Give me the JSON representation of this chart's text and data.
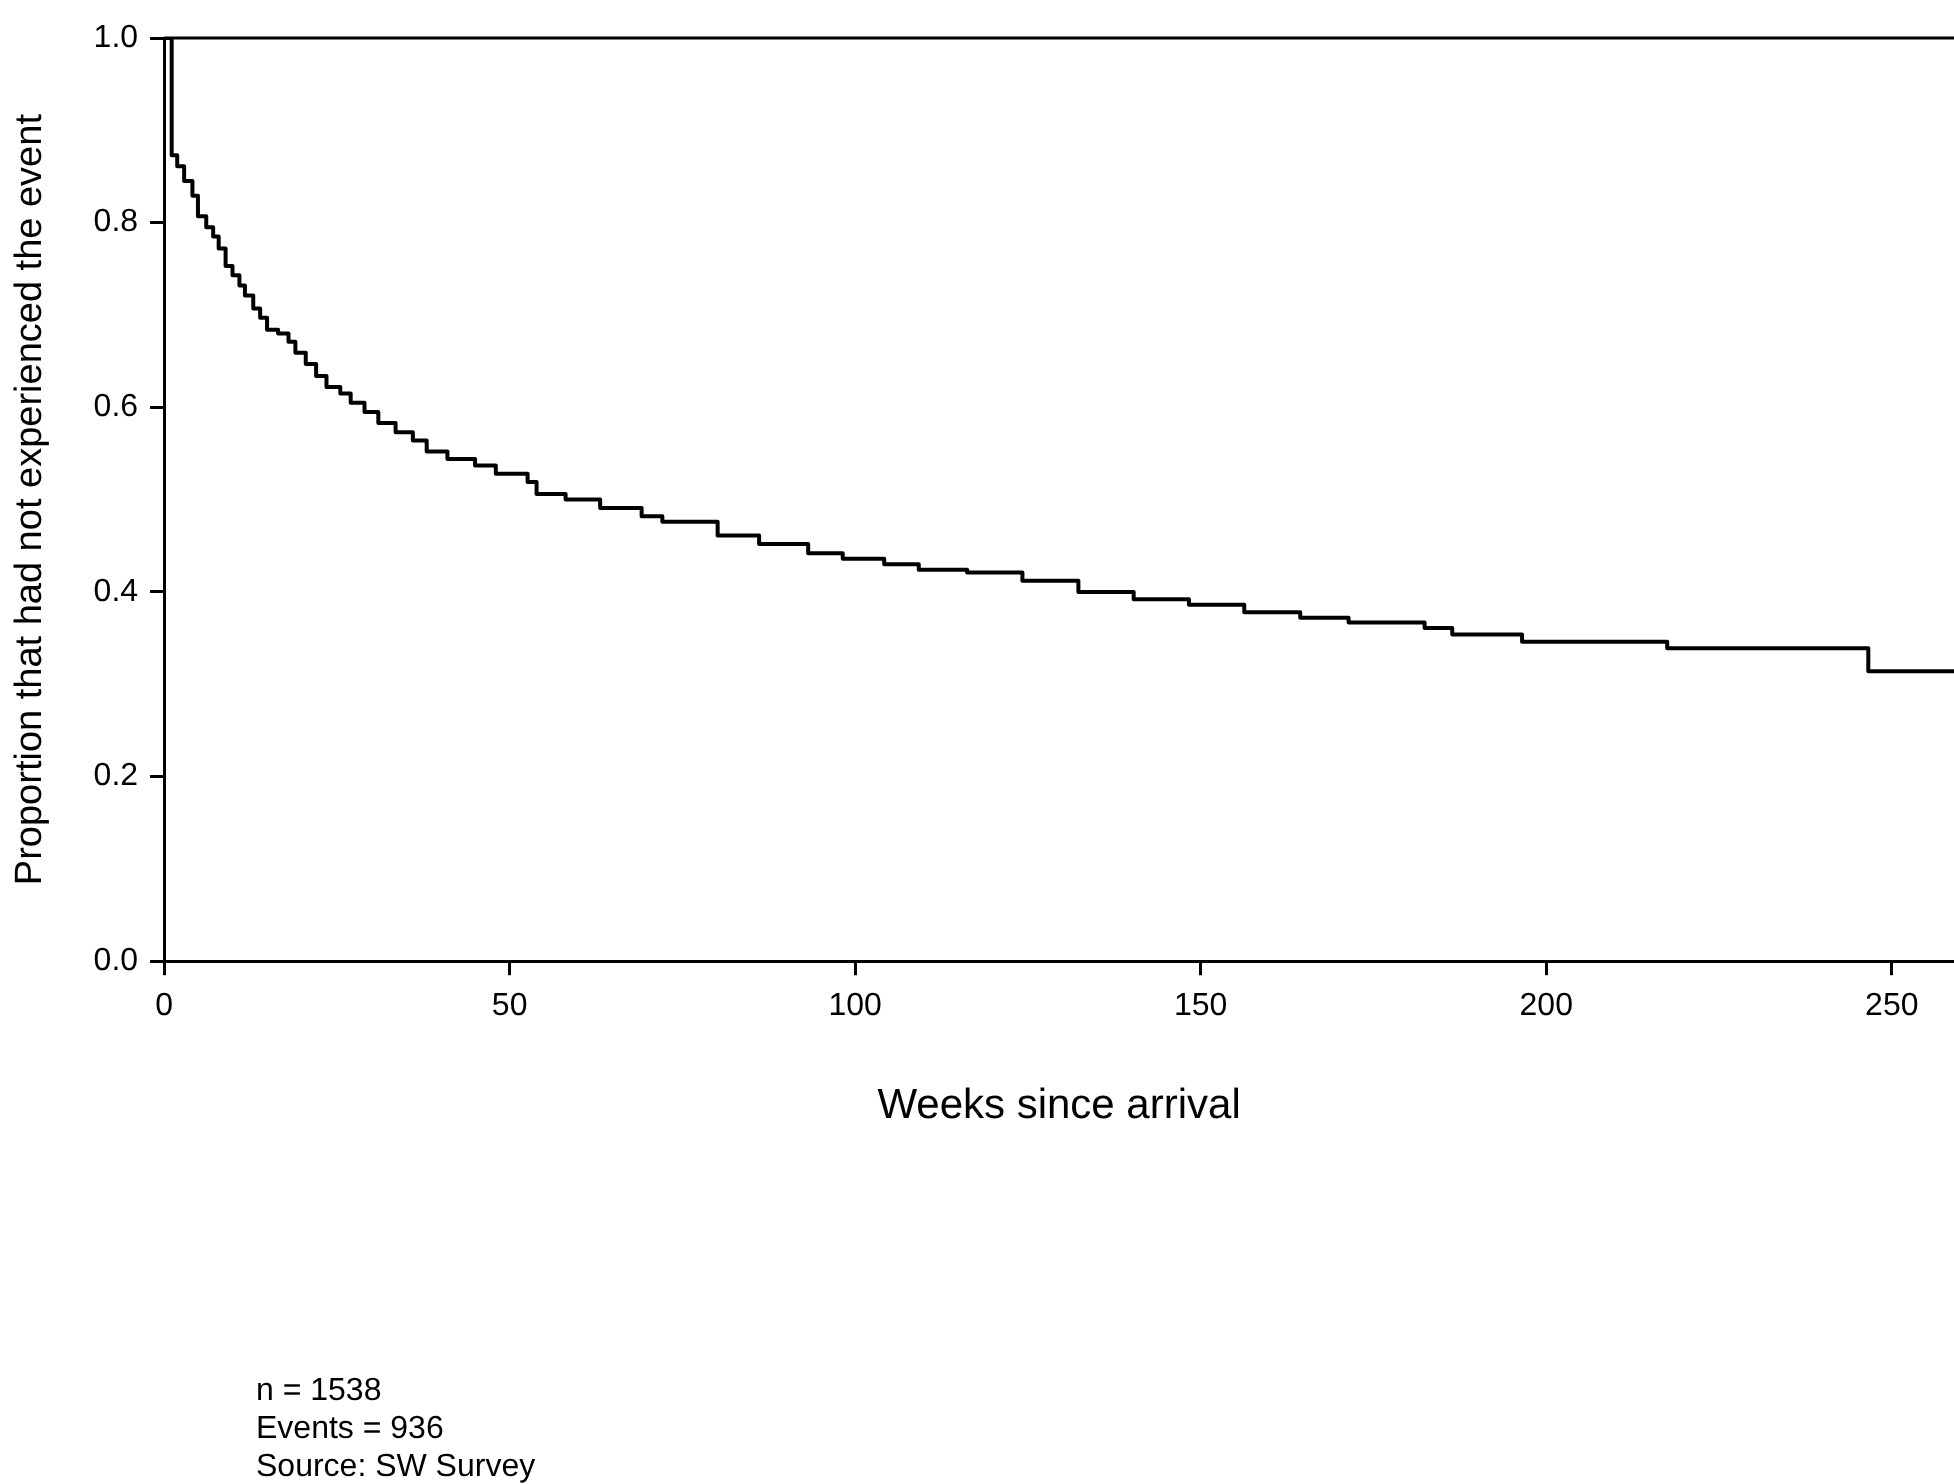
{
  "chart_data": {
    "type": "step",
    "xlabel": "Weeks since arrival",
    "ylabel": "Proportion that had not experienced the event",
    "x": [
      0,
      0.7,
      1.1,
      1.9,
      2.9,
      4.1,
      4.9,
      6.1,
      7.1,
      7.9,
      8.9,
      9.9,
      10.9,
      11.7,
      12.9,
      13.9,
      14.9,
      16.5,
      18,
      19,
      20.5,
      22,
      23.5,
      25.5,
      27,
      29,
      31,
      33.5,
      36,
      38,
      41,
      45,
      48,
      52.6,
      53.9,
      58.1,
      63.1,
      69.1,
      72.1,
      80.1,
      86.1,
      93.2,
      98.2,
      104.2,
      109.2,
      116.2,
      124.2,
      132.3,
      140.3,
      148.3,
      156.3,
      164.4,
      171.4,
      182.4,
      186.4,
      196.5,
      217.5,
      246.6,
      259
    ],
    "values": [
      1.0,
      1.0,
      0.873,
      0.861,
      0.845,
      0.829,
      0.807,
      0.795,
      0.785,
      0.772,
      0.753,
      0.743,
      0.732,
      0.721,
      0.707,
      0.697,
      0.684,
      0.68,
      0.671,
      0.659,
      0.647,
      0.634,
      0.622,
      0.615,
      0.605,
      0.595,
      0.583,
      0.573,
      0.564,
      0.552,
      0.544,
      0.537,
      0.528,
      0.519,
      0.506,
      0.5,
      0.491,
      0.482,
      0.476,
      0.461,
      0.452,
      0.442,
      0.436,
      0.43,
      0.424,
      0.421,
      0.412,
      0.4,
      0.392,
      0.386,
      0.378,
      0.372,
      0.367,
      0.361,
      0.354,
      0.346,
      0.339,
      0.314,
      0.314
    ],
    "color": "#000000",
    "xlim": [
      0,
      259
    ],
    "xticks": [
      0,
      50,
      100,
      150,
      200,
      250
    ],
    "ylim": [
      0,
      1.0
    ],
    "yticks": [
      {
        "value": 0,
        "label": "0.0"
      },
      {
        "value": 0.2,
        "label": "0.2"
      },
      {
        "value": 0.4,
        "label": "0.4"
      },
      {
        "value": 0.6,
        "label": "0.6"
      },
      {
        "value": 0.8,
        "label": "0.8"
      },
      {
        "value": 1.0,
        "label": "1.0"
      }
    ],
    "grid": false,
    "legend": false,
    "marker": "none",
    "line_style": "solid",
    "annotations": [
      "n = 1538",
      "Events = 936",
      "Source: SW Survey"
    ]
  }
}
